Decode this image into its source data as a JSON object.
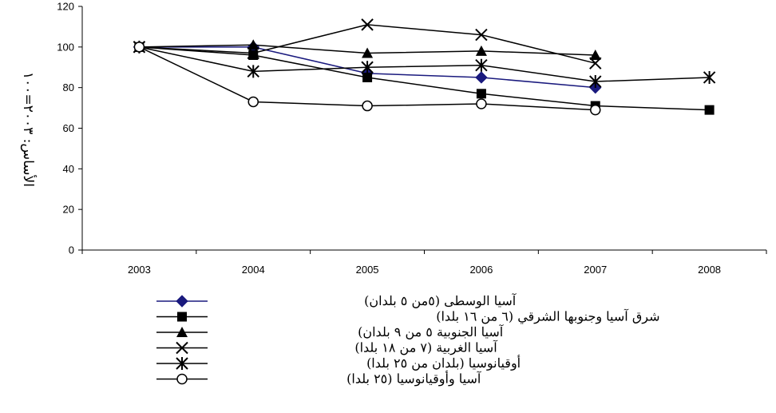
{
  "chart_data": {
    "type": "line",
    "ylabel": "الأساس: ٢٠٠٣=١٠٠",
    "categories": [
      "2003",
      "2004",
      "2005",
      "2006",
      "2007",
      "2008"
    ],
    "ylim": [
      0,
      120
    ],
    "yticks": [
      0,
      20,
      40,
      60,
      80,
      100,
      120
    ],
    "grid": false,
    "legend_position": "bottom",
    "series": [
      {
        "name": "آسيا الوسطى (٥من ٥ بلدان)",
        "marker": "diamond",
        "color": "#1a1a7e",
        "values": [
          100,
          100,
          87,
          85,
          80,
          null
        ]
      },
      {
        "name": "شرق آسيا وجنوبها الشرقي (٦ من ١٦ بلدا)",
        "marker": "square",
        "color": "#000000",
        "values": [
          100,
          96,
          85,
          77,
          71,
          69
        ]
      },
      {
        "name": "آسيا الجنوبية ٥ من ٩ بلدان)",
        "marker": "triangle",
        "color": "#000000",
        "values": [
          100,
          101,
          97,
          98,
          96,
          null
        ]
      },
      {
        "name": "آسيا الغربية (٧ من ١٨ بلدا)",
        "marker": "x",
        "color": "#000000",
        "values": [
          100,
          97,
          111,
          106,
          92,
          null
        ]
      },
      {
        "name": "أوقيانوسيا (بلدان من ٢٥ بلدا)",
        "marker": "star",
        "color": "#000000",
        "values": [
          100,
          88,
          90,
          91,
          83,
          85
        ]
      },
      {
        "name": "آسيا وأوقيانوسيا (٢٥ بلدا)",
        "marker": "circle",
        "color": "#000000",
        "values": [
          100,
          73,
          71,
          72,
          69,
          null
        ]
      }
    ]
  }
}
